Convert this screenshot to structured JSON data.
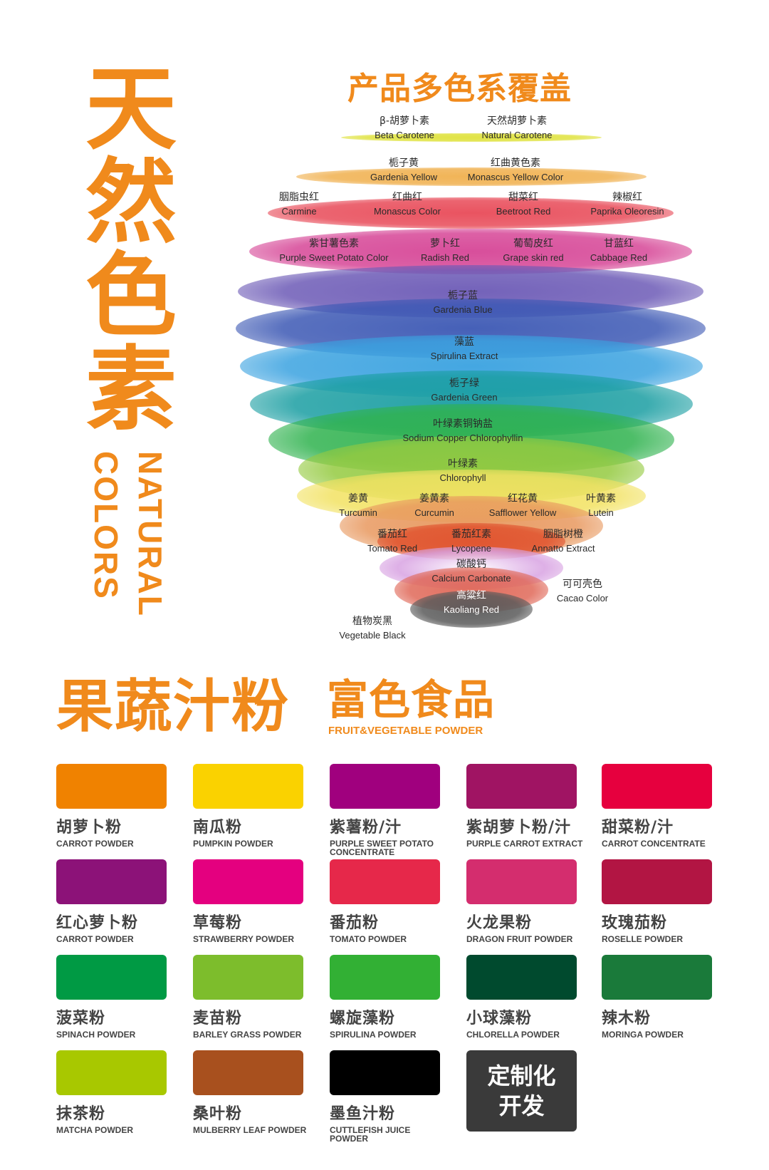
{
  "title_vertical": [
    "天",
    "然",
    "色",
    "素"
  ],
  "subtitle_en_1": "NATURAL",
  "subtitle_en_2": "COLORS",
  "section1_heading": "产品多色系覆盖",
  "layer_colors": [
    "#dfe23c",
    "#f0b04e",
    "#e84a58",
    "#d64596",
    "#6c5ab6",
    "#3c58b4",
    "#3aa2e0",
    "#1a9ea2",
    "#2fb24e",
    "#94ca40",
    "#f2e262",
    "#e8985e",
    "#e0522e",
    "#d8a2e2",
    "#e06858",
    "#5a5a5a"
  ],
  "pigments": [
    {
      "cn": "β-胡萝卜素",
      "en": "Beta Carotene"
    },
    {
      "cn": "天然胡萝卜素",
      "en": "Natural Carotene"
    },
    {
      "cn": "栀子黄",
      "en": "Gardenia Yellow"
    },
    {
      "cn": "红曲黄色素",
      "en": "Monascus Yellow Color"
    },
    {
      "cn": "胭脂虫红",
      "en": "Carmine"
    },
    {
      "cn": "红曲红",
      "en": "Monascus  Color"
    },
    {
      "cn": "甜菜红",
      "en": "Beetroot Red"
    },
    {
      "cn": "辣椒红",
      "en": "Paprika Oleoresin"
    },
    {
      "cn": "紫甘薯色素",
      "en": "Purple Sweet Potato Color"
    },
    {
      "cn": "萝卜红",
      "en": "Radish Red"
    },
    {
      "cn": "葡萄皮红",
      "en": "Grape skin red"
    },
    {
      "cn": "甘蓝红",
      "en": "Cabbage Red"
    },
    {
      "cn": "栀子蓝",
      "en": "Gardenia Blue"
    },
    {
      "cn": "藻蓝",
      "en": "Spirulina Extract"
    },
    {
      "cn": "栀子绿",
      "en": "Gardenia Green"
    },
    {
      "cn": "叶绿素铜钠盐",
      "en": "Sodium Copper Chlorophyllin"
    },
    {
      "cn": "叶绿素",
      "en": "Chlorophyll"
    },
    {
      "cn": "姜黄",
      "en": "Turcumin"
    },
    {
      "cn": "姜黄素",
      "en": "Curcumin"
    },
    {
      "cn": "红花黄",
      "en": "Safflower Yellow"
    },
    {
      "cn": "叶黄素",
      "en": "Lutein"
    },
    {
      "cn": "番茄红",
      "en": "Tomato Red"
    },
    {
      "cn": "番茄红素",
      "en": "Lycopene"
    },
    {
      "cn": "胭脂树橙",
      "en": "Annatto Extract"
    },
    {
      "cn": "碳酸钙",
      "en": "Calcium Carbonate"
    },
    {
      "cn": "可可壳色",
      "en": "Cacao Color"
    },
    {
      "cn": "高粱红",
      "en": "Kaoliang Red"
    },
    {
      "cn": "植物炭黑",
      "en": "Vegetable Black"
    }
  ],
  "section2": {
    "heading_main": "果蔬汁粉",
    "heading_side": "富色食品",
    "heading_en": "FRUIT&VEGETABLE POWDER",
    "products": [
      {
        "cn": "胡萝卜粉",
        "en": "CARROT POWDER",
        "color": "#f08200"
      },
      {
        "cn": "南瓜粉",
        "en": "PUMPKIN POWDER",
        "color": "#fad200"
      },
      {
        "cn": "紫薯粉/汁",
        "en": "PURPLE SWEET POTATO CONCENTRATE",
        "color": "#a0007e"
      },
      {
        "cn": "紫胡萝卜粉/汁",
        "en": "PURPLE CARROT EXTRACT",
        "color": "#a01463"
      },
      {
        "cn": "甜菜粉/汁",
        "en": "CARROT CONCENTRATE",
        "color": "#e6003e"
      },
      {
        "cn": "红心萝卜粉",
        "en": "CARROT POWDER",
        "color": "#8c1278"
      },
      {
        "cn": "草莓粉",
        "en": "STRAWBERRY POWDER",
        "color": "#e4007f"
      },
      {
        "cn": "番茄粉",
        "en": "TOMATO POWDER",
        "color": "#e6284a"
      },
      {
        "cn": "火龙果粉",
        "en": "DRAGON FRUIT POWDER",
        "color": "#d42d6e"
      },
      {
        "cn": "玫瑰茄粉",
        "en": "ROSELLE POWDER",
        "color": "#b21543"
      },
      {
        "cn": "菠菜粉",
        "en": "SPINACH POWDER",
        "color": "#009a44"
      },
      {
        "cn": "麦苗粉",
        "en": "BARLEY GRASS POWDER",
        "color": "#7dbd2c"
      },
      {
        "cn": "螺旋藻粉",
        "en": "SPIRULINA POWDER",
        "color": "#32b034"
      },
      {
        "cn": "小球藻粉",
        "en": "CHLORELLA POWDER",
        "color": "#004a2e"
      },
      {
        "cn": "辣木粉",
        "en": "MORINGA POWDER",
        "color": "#1a7a3a"
      },
      {
        "cn": "抹茶粉",
        "en": "MATCHA POWDER",
        "color": "#a8c800"
      },
      {
        "cn": "桑叶粉",
        "en": "MULBERRY LEAF POWDER",
        "color": "#a8501e"
      },
      {
        "cn": "墨鱼汁粉",
        "en": "CUTTLEFISH JUICE POWDER",
        "color": "#000000"
      }
    ],
    "custom_line1": "定制化",
    "custom_line2": "开发",
    "custom_color": "#3a3a3a"
  }
}
